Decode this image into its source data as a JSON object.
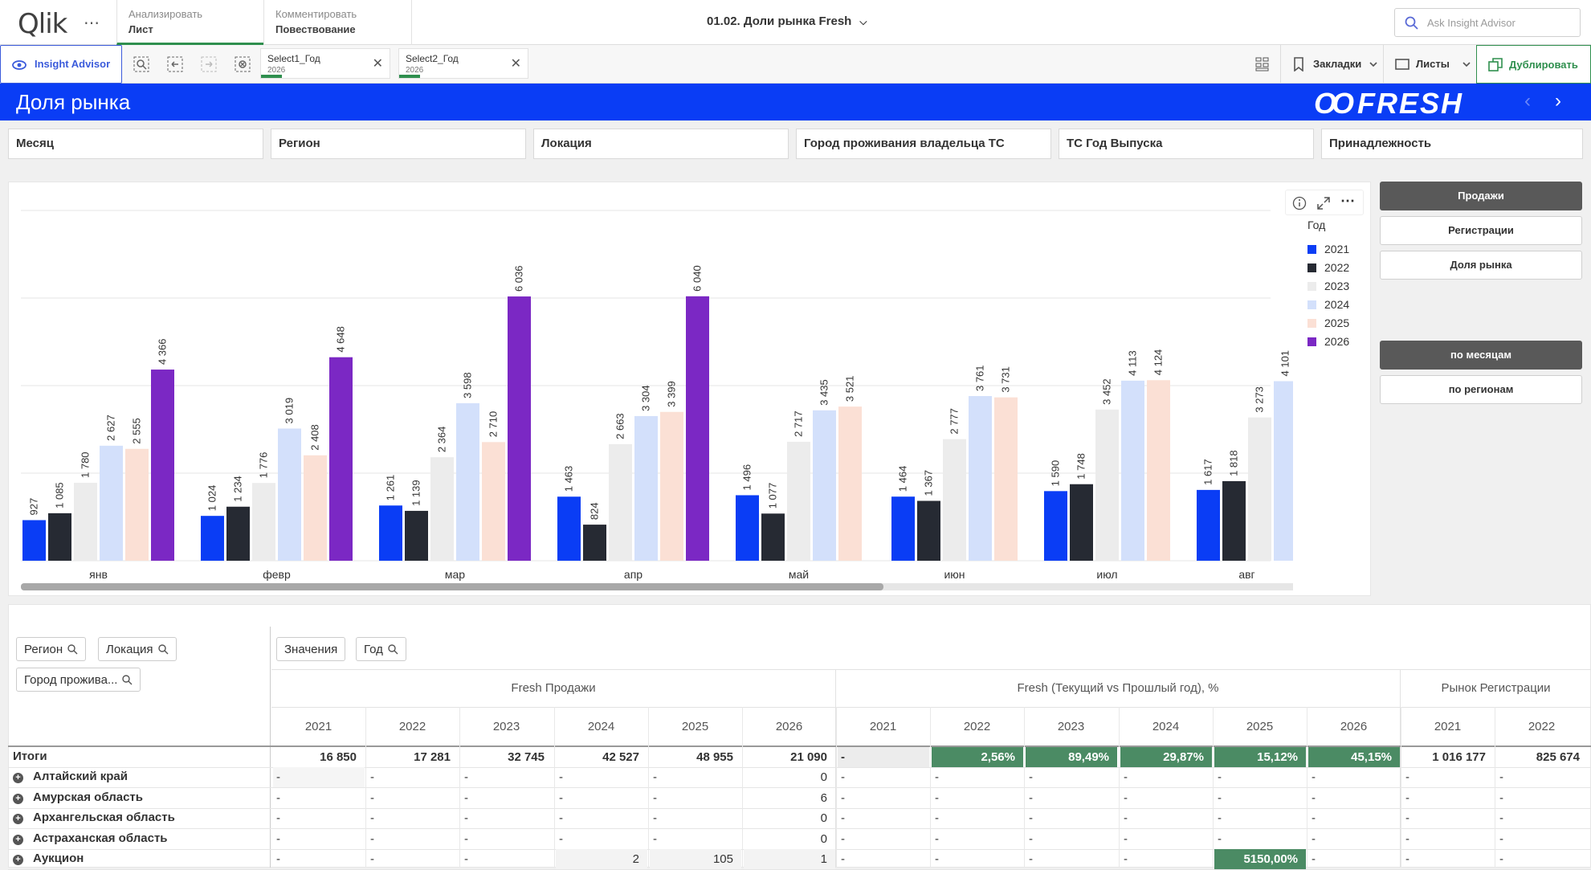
{
  "topbar": {
    "logo": "Qlik",
    "menu": "⋯",
    "analyze_tab": {
      "line1": "Анализировать",
      "line2": "Лист"
    },
    "comment_tab": {
      "line1": "Комментировать",
      "line2": "Повествование"
    },
    "app_title": "01.02. Доли рынка Fresh",
    "ask_placeholder": "Ask Insight Advisor"
  },
  "toolbar": {
    "insight_advisor": "Insight Advisor",
    "selections": [
      {
        "name": "Select1_Год",
        "value": "2026"
      },
      {
        "name": "Select2_Год",
        "value": "2026"
      }
    ],
    "bookmarks": "Закладки",
    "sheets": "Листы",
    "duplicate": "Дублировать"
  },
  "banner": {
    "title": "Доля рынка",
    "brand": "FRESH"
  },
  "filters": [
    "Месяц",
    "Регион",
    "Локация",
    "Город проживания владельца ТС",
    "ТС Год Выпуска",
    "Принадлежность"
  ],
  "colors": {
    "2021": "#0a3df5",
    "2022": "#262a33",
    "2023": "#ececec",
    "2024": "#d3e0fb",
    "2025": "#fbe0d5",
    "2026": "#7b28c4",
    "banner": "#0a3df5",
    "accent_green": "#2f8f4e"
  },
  "chart_data": {
    "type": "bar",
    "legend_title": "Год",
    "legend_position": "right",
    "categories": [
      "янв",
      "февр",
      "мар",
      "апр",
      "май",
      "июн",
      "июл",
      "авг"
    ],
    "series": [
      {
        "name": "2021",
        "values": [
          927,
          1024,
          1261,
          1463,
          1496,
          1464,
          1590,
          1617
        ]
      },
      {
        "name": "2022",
        "values": [
          1085,
          1234,
          1139,
          824,
          1077,
          1367,
          1748,
          1818
        ]
      },
      {
        "name": "2023",
        "values": [
          1780,
          1776,
          2364,
          2663,
          2717,
          2777,
          3452,
          3273
        ]
      },
      {
        "name": "2024",
        "values": [
          2627,
          3019,
          3598,
          3304,
          3435,
          3761,
          4113,
          4101
        ]
      },
      {
        "name": "2025",
        "values": [
          2555,
          2408,
          2710,
          3399,
          3521,
          3731,
          4124,
          null
        ]
      },
      {
        "name": "2026",
        "values": [
          4366,
          4648,
          6036,
          6040,
          null,
          null,
          null,
          null
        ]
      }
    ],
    "ylim": [
      0,
      8000
    ],
    "grid": true,
    "labels": [
      [
        "927",
        "1 085",
        "1 780",
        "2 627",
        "2 555",
        "4 366"
      ],
      [
        "1 024",
        "1 234",
        "1 776",
        "3 019",
        "2 408",
        "4 648"
      ],
      [
        "1 261",
        "1 139",
        "2 364",
        "3 598",
        "2 710",
        "6 036"
      ],
      [
        "1 463",
        "824",
        "2 663",
        "3 304",
        "3 399",
        "6 040"
      ],
      [
        "1 496",
        "1 077",
        "2 717",
        "3 435",
        "3 521",
        ""
      ],
      [
        "1 464",
        "1 367",
        "2 777",
        "3 761",
        "3 731",
        ""
      ],
      [
        "1 590",
        "1 748",
        "3 452",
        "4 113",
        "4 124",
        ""
      ],
      [
        "1 617",
        "1 818",
        "3 273",
        "4 101",
        "",
        ""
      ]
    ]
  },
  "right_panel": {
    "measure_buttons": [
      "Продажи",
      "Регистрации",
      "Доля рынка"
    ],
    "view_buttons": [
      "по месяцам",
      "по регионам"
    ]
  },
  "table": {
    "dim_chips": [
      "Регион",
      "Локация",
      "Город прожива..."
    ],
    "col_chips": [
      "Значения",
      "Год"
    ],
    "groups": [
      "Fresh Продажи",
      "Fresh (Текущий vs Прошлый год), %",
      "Рынок Регистрации"
    ],
    "years": [
      "2021",
      "2022",
      "2023",
      "2024",
      "2025",
      "2026",
      "2021",
      "2022",
      "2023",
      "2024",
      "2025",
      "2026",
      "2021",
      "2022"
    ],
    "rows": [
      {
        "label": "Итоги",
        "cells": [
          "16 850",
          "17 281",
          "32 745",
          "42 527",
          "48 955",
          "21 090",
          "-",
          "2,56%",
          "89,49%",
          "29,87%",
          "15,12%",
          "45,15%",
          "1 016 177",
          "825 674"
        ]
      },
      {
        "label": "Алтайский край",
        "cells": [
          "-",
          "-",
          "-",
          "-",
          "-",
          "0",
          "-",
          "-",
          "-",
          "-",
          "-",
          "-",
          "-",
          "-"
        ]
      },
      {
        "label": "Амурская область",
        "cells": [
          "-",
          "-",
          "-",
          "-",
          "-",
          "6",
          "-",
          "-",
          "-",
          "-",
          "-",
          "-",
          "-",
          "-"
        ]
      },
      {
        "label": "Архангельская область",
        "cells": [
          "-",
          "-",
          "-",
          "-",
          "-",
          "0",
          "-",
          "-",
          "-",
          "-",
          "-",
          "-",
          "-",
          "-"
        ]
      },
      {
        "label": "Астраханская область",
        "cells": [
          "-",
          "-",
          "-",
          "-",
          "-",
          "0",
          "-",
          "-",
          "-",
          "-",
          "-",
          "-",
          "-",
          "-"
        ]
      },
      {
        "label": "Аукцион",
        "cells": [
          "-",
          "-",
          "-",
          "2",
          "105",
          "1",
          "-",
          "-",
          "-",
          "-",
          "5150,00%",
          "-",
          "-",
          "-"
        ]
      }
    ]
  }
}
